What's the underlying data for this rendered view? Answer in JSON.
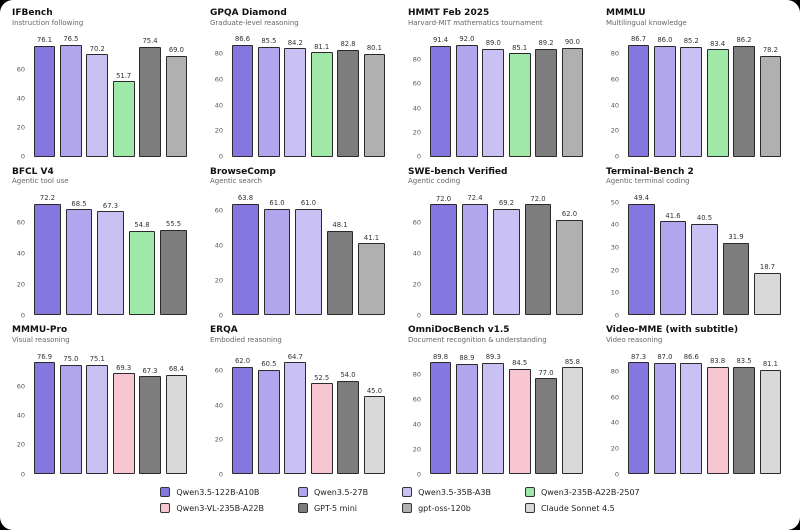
{
  "page": {
    "background_color": "#000000",
    "card_color": "#ffffff"
  },
  "palette": {
    "qwen35_122b": "#8577e0",
    "qwen35_27b": "#b1a6ee",
    "qwen35_35b": "#c9c1f4",
    "qwen3_235b_2507": "#a0e8a8",
    "qwen3_vl_235b": "#f7c6d0",
    "gpt5_mini": "#7d7d7d",
    "gpt_oss_120b": "#b0b0b0",
    "claude_sonnet_45": "#d9d9d9"
  },
  "legend": {
    "items": [
      {
        "label": "Qwen3.5-122B-A10B",
        "color": "#8577e0"
      },
      {
        "label": "Qwen3.5-27B",
        "color": "#b1a6ee"
      },
      {
        "label": "Qwen3.5-35B-A3B",
        "color": "#c9c1f4"
      },
      {
        "label": "Qwen3-235B-A22B-2507",
        "color": "#a0e8a8"
      },
      {
        "label": "Qwen3-VL-235B-A22B",
        "color": "#f7c6d0"
      },
      {
        "label": "GPT-5 mini",
        "color": "#7d7d7d"
      },
      {
        "label": "gpt-oss-120b",
        "color": "#b0b0b0"
      },
      {
        "label": "Claude Sonnet 4.5",
        "color": "#d9d9d9"
      }
    ]
  },
  "chart_data": [
    {
      "type": "bar",
      "title": "IFBench",
      "subtitle": "Instruction following",
      "categories": [
        "Qwen3.5-122B-A10B",
        "Qwen3.5-27B",
        "Qwen3.5-35B-A3B",
        "Qwen3-235B-A22B-2507",
        "GPT-5 mini",
        "gpt-oss-120b"
      ],
      "values": [
        76.1,
        76.5,
        70.2,
        51.7,
        75.4,
        69.0
      ],
      "colors": [
        "#8577e0",
        "#b1a6ee",
        "#c9c1f4",
        "#a0e8a8",
        "#7d7d7d",
        "#b0b0b0"
      ],
      "ylim": [
        0,
        86.5
      ],
      "yticks": [
        0,
        20,
        40,
        60
      ],
      "grid": false,
      "legend_position": "figure-bottom"
    },
    {
      "type": "bar",
      "title": "GPQA Diamond",
      "subtitle": "Graduate-level reasoning",
      "categories": [
        "Qwen3.5-122B-A10B",
        "Qwen3.5-27B",
        "Qwen3.5-35B-A3B",
        "Qwen3-235B-A22B-2507",
        "GPT-5 mini",
        "gpt-oss-120b"
      ],
      "values": [
        86.6,
        85.5,
        84.2,
        81.1,
        82.8,
        80.1
      ],
      "colors": [
        "#8577e0",
        "#b1a6ee",
        "#c9c1f4",
        "#a0e8a8",
        "#7d7d7d",
        "#b0b0b0"
      ],
      "ylim": [
        0,
        98
      ],
      "yticks": [
        0,
        20,
        40,
        60,
        80
      ],
      "grid": false,
      "legend_position": "figure-bottom"
    },
    {
      "type": "bar",
      "title": "HMMT Feb 2025",
      "subtitle": "Harvard-MIT mathematics tournament",
      "categories": [
        "Qwen3.5-122B-A10B",
        "Qwen3.5-27B",
        "Qwen3.5-35B-A3B",
        "Qwen3-235B-A22B-2507",
        "GPT-5 mini",
        "gpt-oss-120b"
      ],
      "values": [
        91.4,
        92.0,
        89.0,
        85.1,
        89.2,
        90.0
      ],
      "colors": [
        "#8577e0",
        "#b1a6ee",
        "#c9c1f4",
        "#a0e8a8",
        "#7d7d7d",
        "#b0b0b0"
      ],
      "ylim": [
        0,
        104
      ],
      "yticks": [
        0,
        20,
        40,
        60,
        80
      ],
      "grid": false,
      "legend_position": "figure-bottom"
    },
    {
      "type": "bar",
      "title": "MMMLU",
      "subtitle": "Multilingual knowledge",
      "categories": [
        "Qwen3.5-122B-A10B",
        "Qwen3.5-27B",
        "Qwen3.5-35B-A3B",
        "Qwen3-235B-A22B-2507",
        "GPT-5 mini",
        "gpt-oss-120b"
      ],
      "values": [
        86.7,
        86.0,
        85.2,
        83.4,
        86.2,
        78.2
      ],
      "colors": [
        "#8577e0",
        "#b1a6ee",
        "#c9c1f4",
        "#a0e8a8",
        "#7d7d7d",
        "#b0b0b0"
      ],
      "ylim": [
        0,
        98
      ],
      "yticks": [
        0,
        20,
        40,
        60,
        80
      ],
      "grid": false,
      "legend_position": "figure-bottom"
    },
    {
      "type": "bar",
      "title": "BFCL V4",
      "subtitle": "Agentic tool use",
      "categories": [
        "Qwen3.5-122B-A10B",
        "Qwen3.5-27B",
        "Qwen3.5-35B-A3B",
        "Qwen3-235B-A22B-2507",
        "GPT-5 mini"
      ],
      "values": [
        72.2,
        68.5,
        67.3,
        54.8,
        55.5
      ],
      "colors": [
        "#8577e0",
        "#b1a6ee",
        "#c9c1f4",
        "#a0e8a8",
        "#7d7d7d"
      ],
      "ylim": [
        0,
        81.6
      ],
      "yticks": [
        0,
        20,
        40,
        60
      ],
      "grid": false,
      "legend_position": "figure-bottom"
    },
    {
      "type": "bar",
      "title": "BrowseComp",
      "subtitle": "Agentic search",
      "categories": [
        "Qwen3.5-122B-A10B",
        "Qwen3.5-27B",
        "Qwen3.5-35B-A3B",
        "GPT-5 mini",
        "gpt-oss-120b"
      ],
      "values": [
        63.8,
        61.0,
        61.0,
        48.1,
        41.1
      ],
      "colors": [
        "#8577e0",
        "#b1a6ee",
        "#c9c1f4",
        "#7d7d7d",
        "#b0b0b0"
      ],
      "ylim": [
        0,
        72.1
      ],
      "yticks": [
        0,
        20,
        40,
        60
      ],
      "grid": false,
      "legend_position": "figure-bottom"
    },
    {
      "type": "bar",
      "title": "SWE-bench Verified",
      "subtitle": "Agentic coding",
      "categories": [
        "Qwen3.5-122B-A10B",
        "Qwen3.5-27B",
        "Qwen3.5-35B-A3B",
        "GPT-5 mini",
        "gpt-oss-120b"
      ],
      "values": [
        72.0,
        72.4,
        69.2,
        72.0,
        62.0
      ],
      "colors": [
        "#8577e0",
        "#b1a6ee",
        "#c9c1f4",
        "#7d7d7d",
        "#b0b0b0"
      ],
      "ylim": [
        0,
        81.8
      ],
      "yticks": [
        0,
        20,
        40,
        60
      ],
      "grid": false,
      "legend_position": "figure-bottom"
    },
    {
      "type": "bar",
      "title": "Terminal-Bench 2",
      "subtitle": "Agentic terminal coding",
      "categories": [
        "Qwen3.5-122B-A10B",
        "Qwen3.5-27B",
        "Qwen3.5-35B-A3B",
        "GPT-5 mini",
        "Claude Sonnet 4.5"
      ],
      "values": [
        49.4,
        41.6,
        40.5,
        31.9,
        18.7
      ],
      "colors": [
        "#8577e0",
        "#b1a6ee",
        "#c9c1f4",
        "#7d7d7d",
        "#d9d9d9"
      ],
      "ylim": [
        0,
        55.8
      ],
      "yticks": [
        0,
        10,
        20,
        30,
        40,
        50
      ],
      "grid": false,
      "legend_position": "figure-bottom"
    },
    {
      "type": "bar",
      "title": "MMMU-Pro",
      "subtitle": "Visual reasoning",
      "categories": [
        "Qwen3.5-122B-A10B",
        "Qwen3.5-27B",
        "Qwen3.5-35B-A3B",
        "Qwen3-VL-235B-A22B",
        "GPT-5 mini",
        "Claude Sonnet 4.5"
      ],
      "values": [
        76.9,
        75.0,
        75.1,
        69.3,
        67.3,
        68.4
      ],
      "colors": [
        "#8577e0",
        "#b1a6ee",
        "#c9c1f4",
        "#f7c6d0",
        "#7d7d7d",
        "#d9d9d9"
      ],
      "ylim": [
        0,
        86.9
      ],
      "yticks": [
        0,
        20,
        40,
        60
      ],
      "grid": false,
      "legend_position": "figure-bottom"
    },
    {
      "type": "bar",
      "title": "ERQA",
      "subtitle": "Embodied reasoning",
      "categories": [
        "Qwen3.5-122B-A10B",
        "Qwen3.5-27B",
        "Qwen3.5-35B-A3B",
        "Qwen3-VL-235B-A22B",
        "GPT-5 mini",
        "Claude Sonnet 4.5"
      ],
      "values": [
        62.0,
        60.5,
        64.7,
        52.5,
        54.0,
        45.0
      ],
      "colors": [
        "#8577e0",
        "#b1a6ee",
        "#c9c1f4",
        "#f7c6d0",
        "#7d7d7d",
        "#d9d9d9"
      ],
      "ylim": [
        0,
        73.1
      ],
      "yticks": [
        0,
        20,
        40,
        60
      ],
      "grid": false,
      "legend_position": "figure-bottom"
    },
    {
      "type": "bar",
      "title": "OmniDocBench v1.5",
      "subtitle": "Document recognition & understanding",
      "categories": [
        "Qwen3.5-122B-A10B",
        "Qwen3.5-27B",
        "Qwen3.5-35B-A3B",
        "Qwen3-VL-235B-A22B",
        "GPT-5 mini",
        "Claude Sonnet 4.5"
      ],
      "values": [
        89.8,
        88.9,
        89.3,
        84.5,
        77.0,
        85.8
      ],
      "colors": [
        "#8577e0",
        "#b1a6ee",
        "#c9c1f4",
        "#f7c6d0",
        "#7d7d7d",
        "#d9d9d9"
      ],
      "ylim": [
        0,
        101.5
      ],
      "yticks": [
        0,
        20,
        40,
        60,
        80
      ],
      "grid": false,
      "legend_position": "figure-bottom"
    },
    {
      "type": "bar",
      "title": "Video-MME (with subtitle)",
      "subtitle": "Video reasoning",
      "categories": [
        "Qwen3.5-122B-A10B",
        "Qwen3.5-27B",
        "Qwen3.5-35B-A3B",
        "Qwen3-VL-235B-A22B",
        "GPT-5 mini",
        "Claude Sonnet 4.5"
      ],
      "values": [
        87.3,
        87.0,
        86.6,
        83.8,
        83.5,
        81.1
      ],
      "colors": [
        "#8577e0",
        "#b1a6ee",
        "#c9c1f4",
        "#f7c6d0",
        "#7d7d7d",
        "#d9d9d9"
      ],
      "ylim": [
        0,
        98.6
      ],
      "yticks": [
        0,
        20,
        40,
        60,
        80
      ],
      "grid": false,
      "legend_position": "figure-bottom"
    }
  ]
}
